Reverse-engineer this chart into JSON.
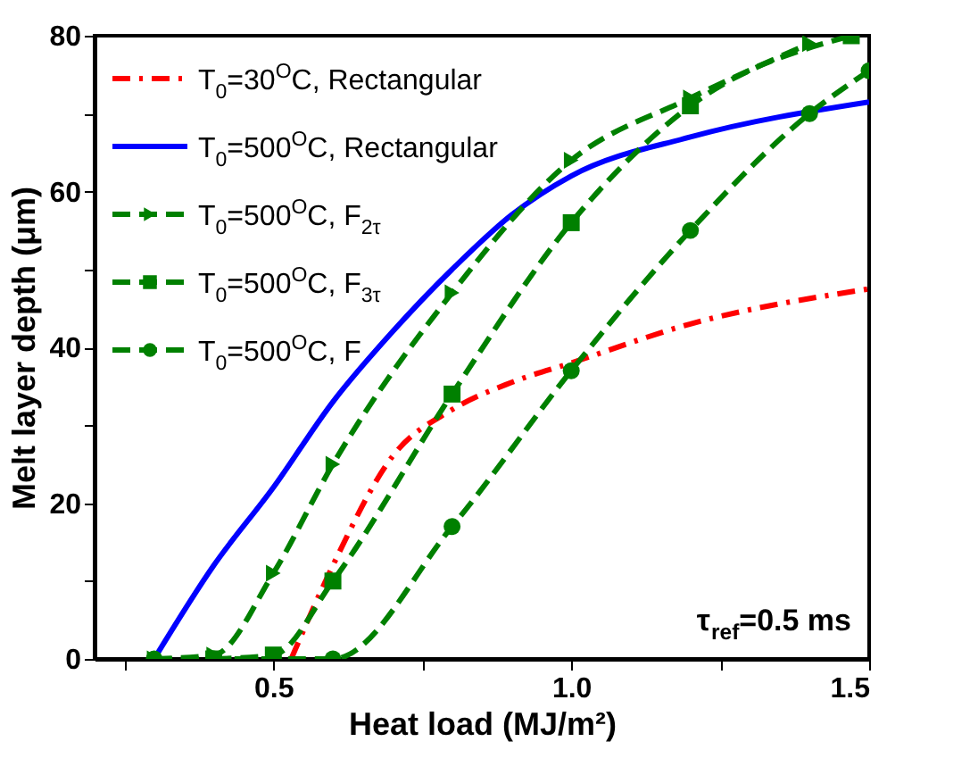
{
  "chart_data": {
    "type": "line",
    "xlabel": "Heat load (MJ/m²)",
    "ylabel": "Melt layer depth (μm)",
    "xlim": [
      0.2,
      1.5
    ],
    "ylim": [
      0,
      80
    ],
    "xticks": [
      {
        "value": 0.25,
        "label": null
      },
      0.5,
      {
        "value": 0.75,
        "label": null
      },
      {
        "value": 1.0,
        "label": "1.0"
      },
      {
        "value": 1.25,
        "label": null
      },
      {
        "value": 1.5,
        "label": "1.5"
      }
    ],
    "yticks": [
      0,
      {
        "value": 10,
        "label": null
      },
      20,
      {
        "value": 30,
        "label": null
      },
      40,
      {
        "value": 50,
        "label": null
      },
      60,
      {
        "value": 70,
        "label": null
      },
      80
    ],
    "legend": "top left",
    "grid": false,
    "annotations": [
      "τ$_{ref}$=0.5 ms"
    ],
    "series": [
      {
        "name": "T$_{0}$=30$^{O}$C, Rectangular",
        "color": "#ff0000",
        "line_style": "dashdot",
        "marker": "none",
        "x": [
          0.53,
          0.6,
          0.7,
          0.8,
          0.9,
          1.0,
          1.2,
          1.5
        ],
        "values": [
          0,
          12,
          26,
          32,
          35.5,
          38,
          43,
          47.5
        ]
      },
      {
        "name": "T$_{0}$=500$^{O}$C, Rectangular",
        "color": "#0000ff",
        "line_style": "solid",
        "marker": "none",
        "x": [
          0.3,
          0.4,
          0.5,
          0.6,
          0.7,
          0.8,
          0.9,
          1.0,
          1.2,
          1.5
        ],
        "values": [
          0,
          12,
          22,
          33,
          42,
          50,
          57,
          62,
          67,
          71.5
        ]
      },
      {
        "name": "T$_{0}$=500$^{O}$C, F$_{2τ}$",
        "color": "#008000",
        "line_style": "dashed",
        "marker": "triangle",
        "x": [
          0.3,
          0.4,
          0.5,
          0.6,
          0.8,
          1.0,
          1.2,
          1.4
        ],
        "values": [
          0,
          0.5,
          11,
          25,
          47,
          64,
          72,
          79
        ]
      },
      {
        "name": "T$_{0}$=500$^{O}$C, F$_{3τ}$",
        "color": "#008000",
        "line_style": "dashed",
        "marker": "square",
        "x": [
          0.4,
          0.5,
          0.6,
          0.8,
          1.0,
          1.2,
          1.47
        ],
        "values": [
          0,
          0.5,
          10,
          34,
          56,
          71,
          80
        ]
      },
      {
        "name": "T$_{0}$=500$^{O}$C, F",
        "color": "#008000",
        "line_style": "dashed",
        "marker": "circle",
        "x": [
          0.3,
          0.4,
          0.5,
          0.6,
          0.8,
          1.0,
          1.2,
          1.4,
          1.5
        ],
        "values": [
          0,
          0,
          0,
          0,
          17,
          37,
          55,
          70,
          75.5
        ]
      }
    ]
  }
}
